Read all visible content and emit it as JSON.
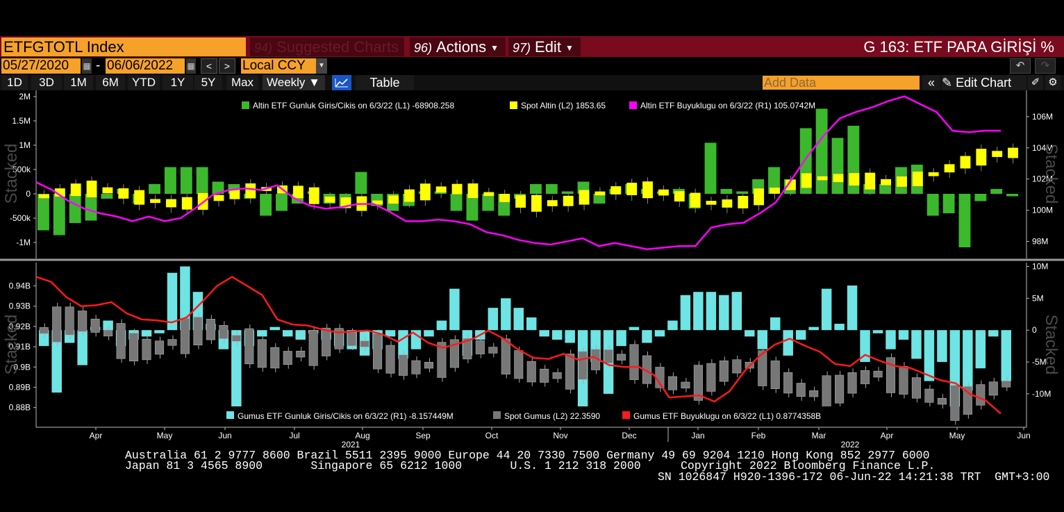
{
  "header": {
    "ticker": "ETFGTOTL Index",
    "menu": [
      {
        "num": "94)",
        "label": "Suggested Charts"
      },
      {
        "num": "96)",
        "label": "Actions"
      },
      {
        "num": "97)",
        "label": "Edit"
      }
    ],
    "chart_title": "G 163: ETF PARA GİRİŞİ %"
  },
  "controls": {
    "start_date": "05/27/2020",
    "end_date": "06/06/2022",
    "date_sep": "-",
    "currency": "Local CCY",
    "timeframes": [
      "1D",
      "3D",
      "1M",
      "6M",
      "YTD",
      "1Y",
      "5Y",
      "Max"
    ],
    "period": "Weekly",
    "table_label": "Table",
    "add_data_placeholder": "Add Data",
    "edit_chart_label": "Edit Chart"
  },
  "chart_data": [
    {
      "type": "bar",
      "panel": "upper",
      "stacked_label": "Stacked",
      "left_axis_ticks": [
        "2M",
        "1.5M",
        "1M",
        "500k",
        "0",
        "-500k",
        "-1M"
      ],
      "right_axis_ticks": [
        "106M",
        "104M",
        "102M",
        "100M",
        "98M"
      ],
      "legend": [
        {
          "color": "#3cb82c",
          "text": "Altin ETF Gunluk Giris/Cikis on 6/3/22 (L1) -68908.258"
        },
        {
          "color": "#ffff00",
          "text": "Spot Altin (L2) 1853.65"
        },
        {
          "color": "#ff00ff",
          "text": "Altin ETF Buyuklugu on 6/3/22 (R1) 105.0742M"
        }
      ],
      "series": [
        {
          "name": "Altin ETF Gunluk Giris/Cikis",
          "values": [
            -0.75,
            -0.85,
            -0.6,
            -0.55,
            -0.1,
            0.1,
            -0.2,
            0.2,
            0.55,
            0.55,
            0.55,
            0.25,
            0.2,
            -0.1,
            -0.45,
            -0.35,
            -0.2,
            0.05,
            -0.2,
            -0.3,
            0.45,
            -0.25,
            -0.35,
            -0.25,
            0.05,
            0.05,
            -0.35,
            -0.55,
            -0.35,
            -0.45,
            -0.1,
            0.2,
            0.2,
            0.05,
            0.25,
            -0.2,
            0.1,
            0.2,
            0.1,
            0.05,
            0.1,
            -0.3,
            1.05,
            0.1,
            0.05,
            0.3,
            0.55,
            0.3,
            1.35,
            1.75,
            1.15,
            1.4,
            0.2,
            0.2,
            0.55,
            0.6,
            -0.45,
            -0.4,
            -1.1,
            -0.15,
            0.1,
            -0.05
          ]
        },
        {
          "name": "Altin ETF Buyuklugu",
          "values": [
            101.8,
            101.3,
            100.6,
            100.1,
            99.8,
            99.6,
            99.3,
            99.6,
            99.3,
            99.5,
            100.2,
            101.0,
            101.3,
            101.4,
            101.3,
            101.6,
            100.8,
            100.3,
            100.1,
            100.2,
            100.4,
            100.4,
            99.9,
            99.3,
            99.3,
            99.4,
            99.3,
            99.1,
            98.6,
            98.4,
            98.1,
            97.9,
            97.8,
            98.0,
            98.2,
            97.7,
            97.9,
            97.7,
            97.5,
            97.6,
            97.7,
            97.7,
            98.9,
            99.1,
            99.2,
            99.8,
            100.5,
            102.0,
            103.5,
            104.8,
            105.9,
            106.3,
            106.6,
            107.0,
            107.3,
            106.8,
            106.3,
            105.1,
            105.0,
            105.1,
            105.1
          ]
        }
      ],
      "ylim_left": [
        -1300000,
        2100000
      ],
      "ylim_right": [
        97.0,
        107.6
      ]
    },
    {
      "type": "bar",
      "panel": "lower",
      "stacked_label": "Stacked",
      "left_axis_ticks": [
        "0.94B",
        "0.93B",
        "0.92B",
        "0.91B",
        "0.9B",
        "0.89B",
        "0.88B"
      ],
      "right_axis_ticks": [
        "10M",
        "5M",
        "0",
        "-5M",
        "-10M"
      ],
      "legend": [
        {
          "color": "#6ee4e4",
          "text": "Gumus ETF Gunluk Giris/Cikis on 6/3/22 (R1) -8.157449M"
        },
        {
          "color": "#777777",
          "text": "Spot Gumus (L2) 22.3590"
        },
        {
          "color": "#ff1a1a",
          "text": "Gumus ETF Buyuklugu on 6/3/22 (L1) 0.8774358B"
        }
      ],
      "series": [
        {
          "name": "Gumus ETF Gunluk Giris/Cikis",
          "values": [
            -2.5,
            -9.8,
            -2.0,
            -5.5,
            0.5,
            1.5,
            -2.5,
            -1.5,
            -1.0,
            -0.5,
            9.0,
            10.0,
            6.0,
            1.0,
            -3.0,
            -13.5,
            -2.5,
            -1.0,
            0.5,
            -1.0,
            -1.5,
            -0.5,
            -1.5,
            -2.5,
            -3.0,
            -4.0,
            -3.0,
            -1.0,
            -4.5,
            -3.0,
            -1.0,
            1.5,
            6.5,
            -4.0,
            -1.5,
            3.5,
            5.0,
            3.5,
            2.0,
            -1.0,
            -1.5,
            -2.0,
            -13.5,
            -5.0,
            -10.0,
            -2.5,
            0.5,
            -2.0,
            -1.0,
            1.5,
            5.5,
            6.0,
            6.0,
            5.5,
            6.0,
            -1.0,
            -3.0,
            2.0,
            -4.0,
            -1.5,
            0.5,
            6.5,
            1.0,
            7.0,
            -5.0,
            -0.5,
            -3.0,
            -1.5,
            -4.5,
            -8.0,
            -5.0,
            -12.0,
            -9.5,
            -6.0,
            -1.0,
            -8.0
          ]
        },
        {
          "name": "Gumus ETF Buyuklugu",
          "values": [
            0.9445,
            0.942,
            0.9345,
            0.93,
            0.9305,
            0.932,
            0.9265,
            0.9235,
            0.923,
            0.922,
            0.9245,
            0.932,
            0.94,
            0.9445,
            0.94,
            0.9355,
            0.9235,
            0.921,
            0.9205,
            0.9185,
            0.917,
            0.9175,
            0.918,
            0.916,
            0.9125,
            0.917,
            0.912,
            0.9095,
            0.9115,
            0.914,
            0.918,
            0.914,
            0.9085,
            0.9045,
            0.904,
            0.9065,
            0.9035,
            0.905,
            0.901,
            0.9,
            0.9,
            0.896,
            0.885,
            0.8855,
            0.886,
            0.883,
            0.888,
            0.898,
            0.9055,
            0.911,
            0.914,
            0.9105,
            0.9075,
            0.9015,
            0.9005,
            0.906,
            0.903,
            0.9005,
            0.8995,
            0.8965,
            0.8935,
            0.892,
            0.8865,
            0.8835,
            0.877
          ]
        }
      ],
      "ylim_left": [
        0.872,
        0.9515
      ],
      "ylim_right": [
        -14700000,
        10600000
      ]
    }
  ],
  "x_axis": {
    "months": [
      "Apr",
      "May",
      "Jun",
      "Jul",
      "Aug",
      "Sep",
      "Oct",
      "Nov",
      "Dec",
      "Jan",
      "Feb",
      "Mar",
      "Apr",
      "May",
      "Jun"
    ],
    "years": [
      "2021",
      "2022"
    ]
  },
  "footer": {
    "line1": "Australia 61 2 9777 8600 Brazil 5511 2395 9000 Europe 44 20 7330 7500 Germany 49 69 9204 1210 Hong Kong 852 2977 6000",
    "line2a": "Japan 81 3 4565 8900       Singapore 65 6212 1000       U.S. 1 212 318 2000",
    "line2b": "Copyright 2022 Bloomberg Finance L.P.",
    "line3": "SN 1026847 H920-1396-172 06-Jun-22 14:21:38 TRT  GMT+3:00"
  },
  "colors": {
    "gold_bar": "#3cb82c",
    "gold_candle": "#ffff00",
    "gold_line": "#ff00ff",
    "silver_bar": "#6ee4e4",
    "silver_candle": "#777777",
    "silver_line": "#ff1a1a",
    "accent": "#f5a12a",
    "header_bg": "#7a0a1e"
  }
}
